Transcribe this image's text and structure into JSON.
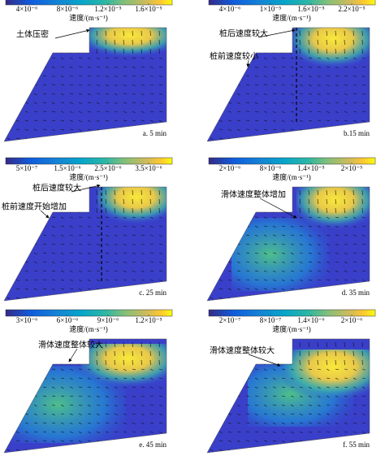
{
  "panels": [
    {
      "colorbar": {
        "ticks": [
          "4×10⁻⁶",
          "8×10⁻⁶",
          "1.2×10⁻⁵",
          "1.6×10⁻⁵"
        ],
        "label": "速度/(m·s⁻¹)"
      },
      "annotations": [
        "土体压密"
      ],
      "caption": "a. 5 min"
    },
    {
      "colorbar": {
        "ticks": [
          "4×10⁻⁶",
          "1×10⁻⁵",
          "1.6×10⁻⁵",
          "2.2×10⁻⁵"
        ],
        "label": "速度/(m·s⁻¹)"
      },
      "annotations": [
        "桩后速度较大",
        "桩前速度较小"
      ],
      "caption": "b.15 min"
    },
    {
      "colorbar": {
        "ticks": [
          "5×10⁻⁷",
          "1.5×10⁻⁶",
          "2.5×10⁻⁶",
          "3.5×10⁻⁶"
        ],
        "label": "速度/(m·s⁻¹)"
      },
      "annotations": [
        "桩后速度较大",
        "桩前速度开始增加"
      ],
      "caption": "c. 25 min"
    },
    {
      "colorbar": {
        "ticks": [
          "2×10⁻⁶",
          "8×10⁻⁶",
          "1.4×10⁻⁵",
          "2×10⁻⁵"
        ],
        "label": "速度/(m·s⁻¹)"
      },
      "annotations": [
        "滑体速度整体增加"
      ],
      "caption": "d. 35 min"
    },
    {
      "colorbar": {
        "ticks": [
          "3×10⁻⁶",
          "6×10⁻⁶",
          "9×10⁻⁶",
          "1.2×10⁻⁵"
        ],
        "label": "速度/(m·s⁻¹)"
      },
      "annotations": [
        "滑体速度整体较大"
      ],
      "caption": "e. 45 min"
    },
    {
      "colorbar": {
        "ticks": [
          "2×10⁻⁷",
          "8×10⁻⁷",
          "1.4×10⁻⁶",
          "2×10⁻⁶"
        ],
        "label": "速度/(m·s⁻¹)"
      },
      "annotations": [
        "滑体速度整体较大"
      ],
      "caption": "f. 55 min"
    }
  ]
}
